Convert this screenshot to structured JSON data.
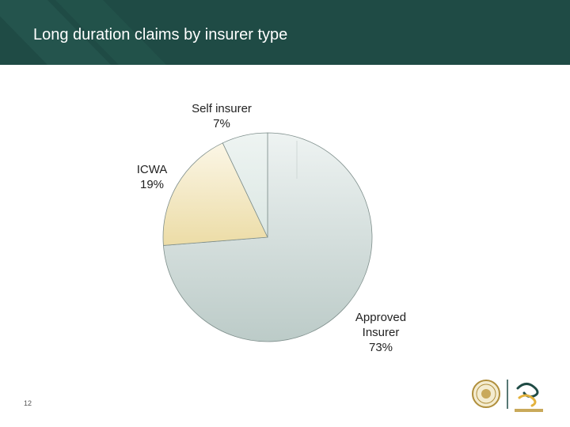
{
  "slide": {
    "title": "Long duration claims by insurer type",
    "page_number": "12"
  },
  "chart_data": {
    "type": "pie",
    "title": "Long duration claims by insurer type",
    "slices": [
      {
        "label": "Self insurer",
        "value": 7,
        "value_label": "7%",
        "color": "#dde9e6"
      },
      {
        "label": "ICWA",
        "value": 19,
        "value_label": "19%",
        "color": "#efe3b6"
      },
      {
        "label": "Approved Insurer",
        "value": 73,
        "value_label": "73%",
        "color": "#d1dedc"
      }
    ]
  },
  "labels": {
    "self_insurer": {
      "name": "Self insurer",
      "pct": "7%"
    },
    "icwa": {
      "name": "ICWA",
      "pct": "19%"
    },
    "approved": {
      "name1": "Approved",
      "name2": "Insurer",
      "pct": "73%"
    }
  },
  "colors": {
    "header_bg": "#1f4b45",
    "slice_edge": "#7f8f8c"
  },
  "logos": {
    "left": "crest-logo",
    "right": "workcover-wa-logo",
    "brand_text": "WorkCover WA"
  }
}
